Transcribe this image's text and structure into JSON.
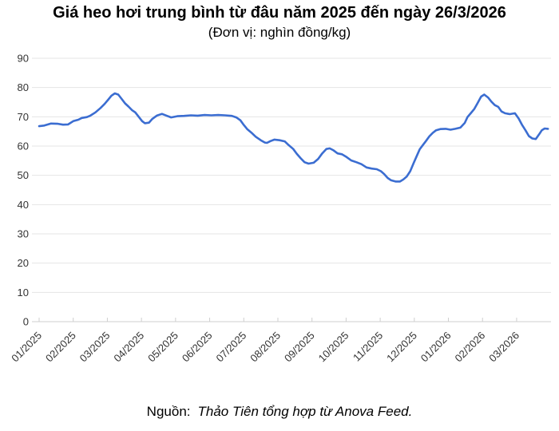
{
  "page": {
    "background": "#ffffff"
  },
  "header": {
    "title": "Giá heo hơi trung bình từ đâu năm 2025 đến ngày 26/3/2026",
    "subtitle": "(Đơn vị: nghìn đồng/kg)"
  },
  "footer": {
    "source_label": "Nguồn:",
    "source_text": "Thảo Tiên tổng hợp từ Anova Feed."
  },
  "chart_data": {
    "type": "line",
    "title": "Giá heo hơi trung bình từ đâu năm 2025 đến ngày 26/3/2026",
    "subtitle": "(Đơn vị: nghìn đồng/kg)",
    "ylabel": "",
    "xlabel": "",
    "ylim": [
      0,
      90
    ],
    "yticks": [
      0,
      10,
      20,
      30,
      40,
      50,
      60,
      70,
      80,
      90
    ],
    "x_tick_labels": [
      "01/2025",
      "02/2025",
      "03/2025",
      "04/2025",
      "05/2025",
      "06/2025",
      "07/2025",
      "08/2025",
      "09/2025",
      "10/2025",
      "11/2025",
      "12/2025",
      "01/2026",
      "02/2026",
      "03/2026"
    ],
    "grid": true,
    "legend": "none",
    "line_color": "#3b6dd1",
    "grid_color": "#e5e5e5",
    "axis_color": "#cfcfcf",
    "label_color": "#333333",
    "series": [
      {
        "points": [
          [
            0,
            66.8
          ],
          [
            0.15,
            67
          ],
          [
            0.35,
            67.7
          ],
          [
            0.55,
            67.6
          ],
          [
            0.7,
            67.3
          ],
          [
            0.85,
            67.4
          ],
          [
            1,
            68.5
          ],
          [
            1.15,
            69
          ],
          [
            1.25,
            69.6
          ],
          [
            1.4,
            69.9
          ],
          [
            1.5,
            70.4
          ],
          [
            1.65,
            71.5
          ],
          [
            1.8,
            73
          ],
          [
            1.92,
            74.4
          ],
          [
            2.02,
            75.8
          ],
          [
            2.12,
            77.2
          ],
          [
            2.22,
            78
          ],
          [
            2.32,
            77.6
          ],
          [
            2.42,
            76.1
          ],
          [
            2.52,
            74.6
          ],
          [
            2.62,
            73.5
          ],
          [
            2.72,
            72.3
          ],
          [
            2.82,
            71.5
          ],
          [
            2.92,
            70
          ],
          [
            3.02,
            68.5
          ],
          [
            3.1,
            67.8
          ],
          [
            3.22,
            68
          ],
          [
            3.32,
            69.3
          ],
          [
            3.45,
            70.4
          ],
          [
            3.6,
            71
          ],
          [
            3.75,
            70.3
          ],
          [
            3.87,
            69.8
          ],
          [
            4.05,
            70.2
          ],
          [
            4.25,
            70.3
          ],
          [
            4.45,
            70.5
          ],
          [
            4.65,
            70.4
          ],
          [
            4.85,
            70.6
          ],
          [
            5.05,
            70.5
          ],
          [
            5.25,
            70.6
          ],
          [
            5.45,
            70.5
          ],
          [
            5.65,
            70.3
          ],
          [
            5.78,
            69.8
          ],
          [
            5.9,
            68.8
          ],
          [
            6,
            67.2
          ],
          [
            6.1,
            65.8
          ],
          [
            6.22,
            64.6
          ],
          [
            6.35,
            63.2
          ],
          [
            6.5,
            62
          ],
          [
            6.62,
            61.2
          ],
          [
            6.68,
            61.1
          ],
          [
            6.78,
            61.7
          ],
          [
            6.9,
            62.2
          ],
          [
            7.05,
            62
          ],
          [
            7.2,
            61.6
          ],
          [
            7.32,
            60.3
          ],
          [
            7.45,
            59
          ],
          [
            7.55,
            57.4
          ],
          [
            7.67,
            55.8
          ],
          [
            7.78,
            54.5
          ],
          [
            7.9,
            54
          ],
          [
            8.05,
            54.3
          ],
          [
            8.18,
            55.6
          ],
          [
            8.3,
            57.5
          ],
          [
            8.42,
            59
          ],
          [
            8.52,
            59.2
          ],
          [
            8.62,
            58.6
          ],
          [
            8.75,
            57.5
          ],
          [
            8.88,
            57.2
          ],
          [
            9.02,
            56.2
          ],
          [
            9.15,
            55.1
          ],
          [
            9.3,
            54.5
          ],
          [
            9.45,
            53.8
          ],
          [
            9.6,
            52.7
          ],
          [
            9.75,
            52.3
          ],
          [
            9.9,
            52.1
          ],
          [
            10.02,
            51.4
          ],
          [
            10.12,
            50.4
          ],
          [
            10.22,
            49.1
          ],
          [
            10.32,
            48.3
          ],
          [
            10.45,
            47.9
          ],
          [
            10.58,
            47.9
          ],
          [
            10.68,
            48.6
          ],
          [
            10.78,
            49.6
          ],
          [
            10.88,
            51.4
          ],
          [
            10.98,
            54.2
          ],
          [
            11.08,
            56.8
          ],
          [
            11.16,
            58.9
          ],
          [
            11.24,
            60.2
          ],
          [
            11.34,
            61.7
          ],
          [
            11.44,
            63.3
          ],
          [
            11.54,
            64.5
          ],
          [
            11.64,
            65.4
          ],
          [
            11.76,
            65.8
          ],
          [
            11.92,
            65.9
          ],
          [
            12.06,
            65.6
          ],
          [
            12.2,
            65.9
          ],
          [
            12.35,
            66.3
          ],
          [
            12.48,
            67.9
          ],
          [
            12.56,
            69.9
          ],
          [
            12.66,
            71.3
          ],
          [
            12.76,
            72.7
          ],
          [
            12.86,
            74.8
          ],
          [
            12.96,
            76.9
          ],
          [
            13.05,
            77.6
          ],
          [
            13.16,
            76.6
          ],
          [
            13.26,
            75.2
          ],
          [
            13.36,
            74
          ],
          [
            13.46,
            73.4
          ],
          [
            13.56,
            71.8
          ],
          [
            13.66,
            71.2
          ],
          [
            13.8,
            70.9
          ],
          [
            13.95,
            71.2
          ],
          [
            14.06,
            69.4
          ],
          [
            14.16,
            67.2
          ],
          [
            14.26,
            65.4
          ],
          [
            14.36,
            63.4
          ],
          [
            14.46,
            62.6
          ],
          [
            14.56,
            62.4
          ],
          [
            14.66,
            64
          ],
          [
            14.74,
            65.4
          ],
          [
            14.82,
            66
          ],
          [
            14.92,
            65.9
          ]
        ]
      }
    ]
  }
}
